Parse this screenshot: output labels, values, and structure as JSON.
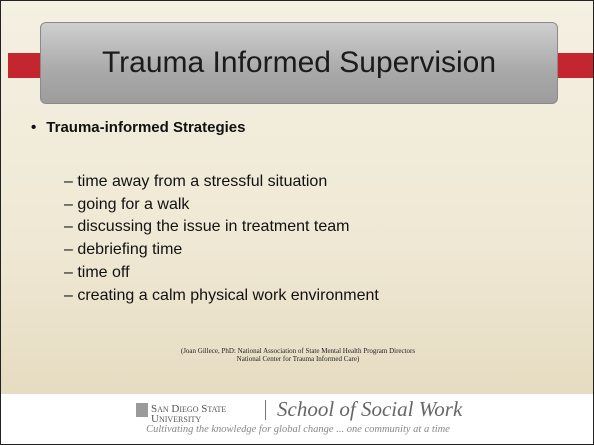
{
  "slide": {
    "title": "Trauma Informed Supervision",
    "heading": "Trauma-informed Strategies",
    "items": [
      "– time away from a stressful situation",
      "– going for a walk",
      "– discussing the issue in treatment team",
      "– debriefing time",
      "– time off",
      "– creating a calm physical work environment"
    ],
    "citation": [
      "(Joan Gillece, PhD: National Association of State Mental Health Program Directors",
      "National Center for Trauma Informed Care)"
    ]
  },
  "footer": {
    "university": [
      "San Diego State",
      "University"
    ],
    "school": "School of Social Work",
    "tagline": "Cultivating the knowledge for global change ... one community at a time"
  }
}
